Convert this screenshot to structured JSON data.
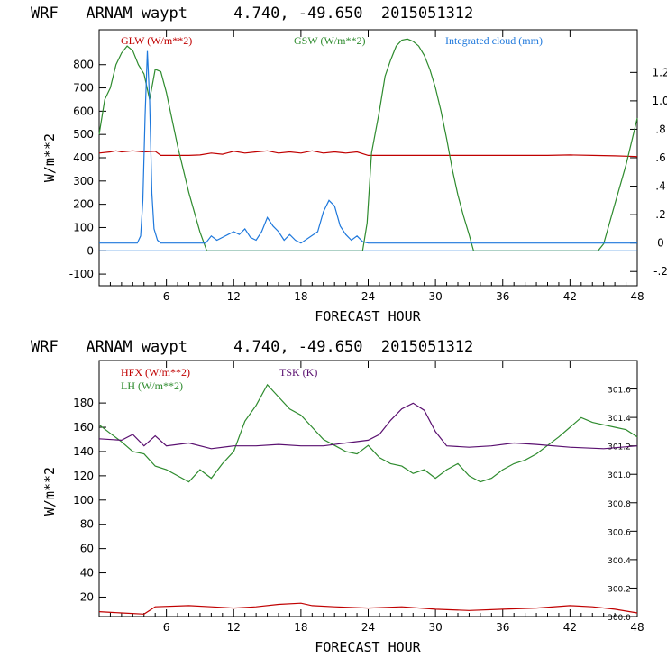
{
  "chart_data": [
    {
      "type": "line",
      "title": "WRF   ARNAM waypt     4.740, -49.650  2015051312",
      "xlabel": "FORECAST HOUR",
      "ylabel": "W/m**2",
      "xlim": [
        0,
        48
      ],
      "ylim": [
        -150,
        950
      ],
      "x_ticks": [
        6,
        12,
        18,
        24,
        30,
        36,
        42,
        48
      ],
      "y_ticks": [
        -100,
        0,
        100,
        200,
        300,
        400,
        500,
        600,
        700,
        800
      ],
      "y2_label": "",
      "y2_lim": [
        -0.3,
        1.5
      ],
      "y2_ticks": [
        -0.2,
        0,
        0.2,
        0.4,
        0.6,
        0.8,
        1.0,
        1.2
      ],
      "y2_tick_labels": [
        "-.2",
        "0",
        ".2",
        ".4",
        ".6",
        ".8",
        "1.0",
        "1.2"
      ],
      "series": [
        {
          "name": "GLW (W/m**2)",
          "color": "#c00000",
          "axis": "left",
          "points": [
            [
              0,
              420
            ],
            [
              1,
              425
            ],
            [
              1.5,
              430
            ],
            [
              2,
              425
            ],
            [
              3,
              430
            ],
            [
              4,
              425
            ],
            [
              5,
              428
            ],
            [
              5.5,
              410
            ],
            [
              6,
              410
            ],
            [
              8,
              410
            ],
            [
              9,
              412
            ],
            [
              10,
              420
            ],
            [
              11,
              415
            ],
            [
              12,
              428
            ],
            [
              13,
              420
            ],
            [
              14,
              425
            ],
            [
              15,
              430
            ],
            [
              16,
              420
            ],
            [
              17,
              425
            ],
            [
              18,
              420
            ],
            [
              19,
              430
            ],
            [
              20,
              420
            ],
            [
              21,
              425
            ],
            [
              22,
              420
            ],
            [
              23,
              425
            ],
            [
              24,
              410
            ],
            [
              26,
              410
            ],
            [
              28,
              410
            ],
            [
              30,
              410
            ],
            [
              32,
              410
            ],
            [
              34,
              410
            ],
            [
              36,
              410
            ],
            [
              38,
              410
            ],
            [
              40,
              410
            ],
            [
              42,
              412
            ],
            [
              44,
              410
            ],
            [
              46,
              408
            ],
            [
              48,
              405
            ]
          ]
        },
        {
          "name": "GSW (W/m**2)",
          "color": "#2e8b2e",
          "axis": "left",
          "points": [
            [
              0,
              500
            ],
            [
              0.5,
              650
            ],
            [
              1,
              700
            ],
            [
              1.5,
              800
            ],
            [
              2,
              850
            ],
            [
              2.5,
              880
            ],
            [
              3,
              860
            ],
            [
              3.5,
              800
            ],
            [
              4,
              760
            ],
            [
              4.5,
              650
            ],
            [
              5,
              780
            ],
            [
              5.5,
              770
            ],
            [
              6,
              680
            ],
            [
              7,
              450
            ],
            [
              8,
              250
            ],
            [
              9,
              80
            ],
            [
              9.6,
              0
            ],
            [
              23.5,
              0
            ],
            [
              23.9,
              120
            ],
            [
              24.3,
              420
            ],
            [
              25,
              600
            ],
            [
              25.5,
              750
            ],
            [
              26,
              820
            ],
            [
              26.5,
              880
            ],
            [
              27,
              905
            ],
            [
              27.5,
              910
            ],
            [
              28,
              900
            ],
            [
              28.5,
              880
            ],
            [
              29,
              840
            ],
            [
              29.5,
              780
            ],
            [
              30,
              700
            ],
            [
              30.5,
              600
            ],
            [
              31,
              480
            ],
            [
              31.5,
              350
            ],
            [
              32,
              240
            ],
            [
              32.5,
              150
            ],
            [
              33,
              70
            ],
            [
              33.4,
              0
            ],
            [
              44.5,
              0
            ],
            [
              45,
              30
            ],
            [
              46,
              200
            ],
            [
              47,
              370
            ],
            [
              48,
              570
            ]
          ]
        },
        {
          "name": "Integrated cloud (mm)",
          "color": "#1e78dc",
          "axis": "right",
          "points": [
            [
              0,
              0
            ],
            [
              3.4,
              0
            ],
            [
              3.7,
              0.05
            ],
            [
              3.9,
              0.3
            ],
            [
              4.1,
              0.9
            ],
            [
              4.3,
              1.35
            ],
            [
              4.5,
              1.0
            ],
            [
              4.7,
              0.35
            ],
            [
              4.9,
              0.1
            ],
            [
              5.2,
              0.02
            ],
            [
              5.5,
              0
            ],
            [
              9.5,
              0
            ],
            [
              10,
              0.05
            ],
            [
              10.5,
              0.02
            ],
            [
              11,
              0.04
            ],
            [
              11.5,
              0.06
            ],
            [
              12,
              0.08
            ],
            [
              12.5,
              0.06
            ],
            [
              13,
              0.1
            ],
            [
              13.5,
              0.04
            ],
            [
              14,
              0.02
            ],
            [
              14.5,
              0.08
            ],
            [
              15,
              0.18
            ],
            [
              15.5,
              0.12
            ],
            [
              16,
              0.08
            ],
            [
              16.5,
              0.02
            ],
            [
              17,
              0.06
            ],
            [
              17.5,
              0.02
            ],
            [
              18,
              0
            ],
            [
              19.5,
              0.08
            ],
            [
              20,
              0.22
            ],
            [
              20.5,
              0.3
            ],
            [
              21,
              0.26
            ],
            [
              21.5,
              0.12
            ],
            [
              22,
              0.06
            ],
            [
              22.5,
              0.02
            ],
            [
              23,
              0.05
            ],
            [
              23.5,
              0.01
            ],
            [
              24,
              0
            ],
            [
              48,
              0
            ]
          ]
        }
      ]
    },
    {
      "type": "line",
      "title": "WRF   ARNAM waypt     4.740, -49.650  2015051312",
      "xlabel": "FORECAST HOUR",
      "ylabel": "W/m**2",
      "xlim": [
        0,
        48
      ],
      "ylim": [
        4,
        215
      ],
      "x_ticks": [
        6,
        12,
        18,
        24,
        30,
        36,
        42,
        48
      ],
      "y_ticks": [
        20,
        40,
        60,
        80,
        100,
        120,
        140,
        160,
        180
      ],
      "y2_label": "",
      "y2_lim": [
        300.0,
        301.8
      ],
      "y2_ticks": [
        300.0,
        300.2,
        300.4,
        300.6,
        300.8,
        301.0,
        301.2,
        301.4,
        301.6
      ],
      "y2_tick_labels": [
        "300.0",
        "300.2",
        "300.4",
        "300.6",
        "300.8",
        "301.0",
        "301.2",
        "301.4",
        "301.6"
      ],
      "series": [
        {
          "name": "HFX (W/m**2)",
          "color": "#c00000",
          "axis": "left",
          "points": [
            [
              0,
              8
            ],
            [
              2,
              7
            ],
            [
              4,
              6
            ],
            [
              5,
              12
            ],
            [
              8,
              13
            ],
            [
              10,
              12
            ],
            [
              12,
              11
            ],
            [
              14,
              12
            ],
            [
              16,
              14
            ],
            [
              18,
              15
            ],
            [
              19,
              13
            ],
            [
              21,
              12
            ],
            [
              24,
              11
            ],
            [
              27,
              12
            ],
            [
              30,
              10
            ],
            [
              33,
              9
            ],
            [
              36,
              10
            ],
            [
              39,
              11
            ],
            [
              42,
              13
            ],
            [
              44,
              12
            ],
            [
              46,
              10
            ],
            [
              48,
              7
            ]
          ]
        },
        {
          "name": "LH (W/m**2)",
          "color": "#2e8b2e",
          "axis": "left",
          "points": [
            [
              0,
              162
            ],
            [
              1,
              155
            ],
            [
              2,
              148
            ],
            [
              3,
              140
            ],
            [
              4,
              138
            ],
            [
              5,
              128
            ],
            [
              6,
              125
            ],
            [
              7,
              120
            ],
            [
              8,
              115
            ],
            [
              9,
              125
            ],
            [
              10,
              118
            ],
            [
              11,
              130
            ],
            [
              12,
              140
            ],
            [
              13,
              165
            ],
            [
              14,
              178
            ],
            [
              15,
              195
            ],
            [
              16,
              185
            ],
            [
              17,
              175
            ],
            [
              18,
              170
            ],
            [
              19,
              160
            ],
            [
              20,
              150
            ],
            [
              21,
              145
            ],
            [
              22,
              140
            ],
            [
              23,
              138
            ],
            [
              24,
              145
            ],
            [
              25,
              135
            ],
            [
              26,
              130
            ],
            [
              27,
              128
            ],
            [
              28,
              122
            ],
            [
              29,
              125
            ],
            [
              30,
              118
            ],
            [
              31,
              125
            ],
            [
              32,
              130
            ],
            [
              33,
              120
            ],
            [
              34,
              115
            ],
            [
              35,
              118
            ],
            [
              36,
              125
            ],
            [
              37,
              130
            ],
            [
              38,
              133
            ],
            [
              39,
              138
            ],
            [
              40,
              145
            ],
            [
              41,
              152
            ],
            [
              42,
              160
            ],
            [
              43,
              168
            ],
            [
              44,
              164
            ],
            [
              45,
              162
            ],
            [
              46,
              160
            ],
            [
              47,
              158
            ],
            [
              48,
              152
            ]
          ]
        },
        {
          "name": "TSK (K)",
          "color": "#5a1070",
          "axis": "right",
          "points": [
            [
              0,
              301.25
            ],
            [
              2,
              301.24
            ],
            [
              3,
              301.28
            ],
            [
              4,
              301.2
            ],
            [
              5,
              301.27
            ],
            [
              6,
              301.2
            ],
            [
              8,
              301.22
            ],
            [
              10,
              301.18
            ],
            [
              12,
              301.2
            ],
            [
              14,
              301.2
            ],
            [
              16,
              301.21
            ],
            [
              18,
              301.2
            ],
            [
              20,
              301.2
            ],
            [
              22,
              301.22
            ],
            [
              24,
              301.24
            ],
            [
              25,
              301.28
            ],
            [
              26,
              301.38
            ],
            [
              27,
              301.46
            ],
            [
              28,
              301.5
            ],
            [
              29,
              301.45
            ],
            [
              30,
              301.3
            ],
            [
              31,
              301.2
            ],
            [
              33,
              301.19
            ],
            [
              35,
              301.2
            ],
            [
              37,
              301.22
            ],
            [
              39,
              301.21
            ],
            [
              42,
              301.19
            ],
            [
              45,
              301.18
            ],
            [
              48,
              301.2
            ]
          ]
        }
      ]
    }
  ]
}
